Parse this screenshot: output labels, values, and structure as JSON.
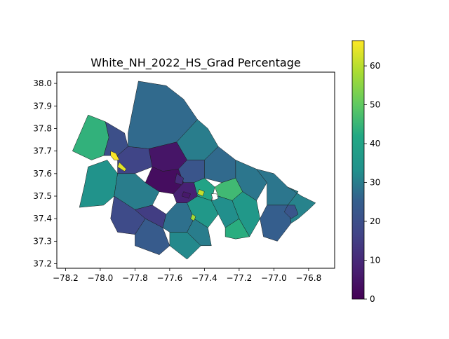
{
  "chart_data": {
    "type": "heatmap",
    "title": "White_NH_2022_HS_Grad Percentage",
    "xlabel": "",
    "ylabel": "",
    "xlim": [
      -78.25,
      -76.65
    ],
    "ylim": [
      37.18,
      38.05
    ],
    "x_ticks": [
      -78.2,
      -78.0,
      -77.8,
      -77.6,
      -77.4,
      -77.2,
      -77.0,
      -76.8
    ],
    "x_tick_labels": [
      "−78.2",
      "−78.0",
      "−77.8",
      "−77.6",
      "−77.4",
      "−77.2",
      "−77.0",
      "−76.8"
    ],
    "y_ticks": [
      37.2,
      37.3,
      37.4,
      37.5,
      37.6,
      37.7,
      37.8,
      37.9,
      38.0
    ],
    "y_tick_labels": [
      "37.2",
      "37.3",
      "37.4",
      "37.5",
      "37.6",
      "37.7",
      "37.8",
      "37.9",
      "38.0"
    ],
    "colorbar": {
      "colormap": "viridis",
      "range": [
        0,
        66.5
      ],
      "ticks": [
        0,
        10,
        20,
        30,
        40,
        50,
        60
      ],
      "tick_labels": [
        "0",
        "10",
        "20",
        "30",
        "40",
        "50",
        "60"
      ]
    },
    "grid": false,
    "regions": [
      {
        "poly": [
          [
            -78.16,
            37.7
          ],
          [
            -78.07,
            37.86
          ],
          [
            -77.97,
            37.83
          ],
          [
            -77.95,
            37.76
          ],
          [
            -77.98,
            37.68
          ],
          [
            -78.05,
            37.66
          ]
        ],
        "value": 44
      },
      {
        "poly": [
          [
            -78.07,
            37.63
          ],
          [
            -77.96,
            37.66
          ],
          [
            -77.9,
            37.6
          ],
          [
            -77.92,
            37.5
          ],
          [
            -77.98,
            37.46
          ],
          [
            -78.12,
            37.45
          ],
          [
            -78.09,
            37.55
          ]
        ],
        "value": 34
      },
      {
        "poly": [
          [
            -77.97,
            37.83
          ],
          [
            -77.86,
            37.78
          ],
          [
            -77.84,
            37.72
          ],
          [
            -77.9,
            37.68
          ],
          [
            -77.98,
            37.68
          ],
          [
            -77.95,
            37.76
          ]
        ],
        "value": 20
      },
      {
        "poly": [
          [
            -77.9,
            37.68
          ],
          [
            -77.84,
            37.72
          ],
          [
            -77.72,
            37.71
          ],
          [
            -77.7,
            37.63
          ],
          [
            -77.8,
            37.6
          ],
          [
            -77.9,
            37.6
          ]
        ],
        "value": 17
      },
      {
        "poly": [
          [
            -77.84,
            37.78
          ],
          [
            -77.78,
            38.01
          ],
          [
            -77.62,
            37.99
          ],
          [
            -77.52,
            37.93
          ],
          [
            -77.44,
            37.84
          ],
          [
            -77.56,
            37.74
          ],
          [
            -77.72,
            37.71
          ],
          [
            -77.84,
            37.72
          ]
        ],
        "value": 27
      },
      {
        "poly": [
          [
            -77.44,
            37.84
          ],
          [
            -77.38,
            37.8
          ],
          [
            -77.32,
            37.72
          ],
          [
            -77.4,
            37.66
          ],
          [
            -77.5,
            37.66
          ],
          [
            -77.56,
            37.74
          ]
        ],
        "value": 30
      },
      {
        "poly": [
          [
            -77.72,
            37.71
          ],
          [
            -77.56,
            37.74
          ],
          [
            -77.5,
            37.66
          ],
          [
            -77.55,
            37.62
          ],
          [
            -77.64,
            37.61
          ],
          [
            -77.7,
            37.63
          ]
        ],
        "value": 5
      },
      {
        "poly": [
          [
            -77.7,
            37.63
          ],
          [
            -77.64,
            37.61
          ],
          [
            -77.55,
            37.62
          ],
          [
            -77.52,
            37.56
          ],
          [
            -77.58,
            37.51
          ],
          [
            -77.66,
            37.52
          ],
          [
            -77.74,
            37.56
          ]
        ],
        "value": 3
      },
      {
        "poly": [
          [
            -77.58,
            37.51
          ],
          [
            -77.52,
            37.56
          ],
          [
            -77.46,
            37.56
          ],
          [
            -77.44,
            37.5
          ],
          [
            -77.5,
            37.47
          ],
          [
            -77.56,
            37.47
          ]
        ],
        "value": 8
      },
      {
        "poly": [
          [
            -77.55,
            37.62
          ],
          [
            -77.5,
            37.66
          ],
          [
            -77.4,
            37.66
          ],
          [
            -77.4,
            37.58
          ],
          [
            -77.46,
            37.56
          ],
          [
            -77.52,
            37.56
          ]
        ],
        "value": 22
      },
      {
        "poly": [
          [
            -77.9,
            37.6
          ],
          [
            -77.8,
            37.6
          ],
          [
            -77.74,
            37.56
          ],
          [
            -77.66,
            37.52
          ],
          [
            -77.7,
            37.46
          ],
          [
            -77.8,
            37.44
          ],
          [
            -77.92,
            37.5
          ]
        ],
        "value": 30
      },
      {
        "poly": [
          [
            -77.92,
            37.5
          ],
          [
            -77.8,
            37.44
          ],
          [
            -77.74,
            37.4
          ],
          [
            -77.8,
            37.33
          ],
          [
            -77.9,
            37.34
          ],
          [
            -77.94,
            37.4
          ]
        ],
        "value": 19
      },
      {
        "poly": [
          [
            -77.8,
            37.44
          ],
          [
            -77.7,
            37.46
          ],
          [
            -77.62,
            37.42
          ],
          [
            -77.64,
            37.36
          ],
          [
            -77.74,
            37.4
          ]
        ],
        "value": 15
      },
      {
        "poly": [
          [
            -77.74,
            37.4
          ],
          [
            -77.64,
            37.36
          ],
          [
            -77.6,
            37.28
          ],
          [
            -77.66,
            37.24
          ],
          [
            -77.8,
            37.28
          ],
          [
            -77.8,
            37.33
          ]
        ],
        "value": 24
      },
      {
        "poly": [
          [
            -77.62,
            37.42
          ],
          [
            -77.56,
            37.47
          ],
          [
            -77.5,
            37.47
          ],
          [
            -77.46,
            37.4
          ],
          [
            -77.5,
            37.34
          ],
          [
            -77.6,
            37.34
          ],
          [
            -77.64,
            37.36
          ]
        ],
        "value": 28
      },
      {
        "poly": [
          [
            -77.6,
            37.34
          ],
          [
            -77.5,
            37.34
          ],
          [
            -77.42,
            37.28
          ],
          [
            -77.5,
            37.22
          ],
          [
            -77.6,
            37.28
          ]
        ],
        "value": 32
      },
      {
        "poly": [
          [
            -77.46,
            37.56
          ],
          [
            -77.4,
            37.58
          ],
          [
            -77.34,
            37.54
          ],
          [
            -77.36,
            37.48
          ],
          [
            -77.44,
            37.5
          ]
        ],
        "value": 40
      },
      {
        "poly": [
          [
            -77.44,
            37.5
          ],
          [
            -77.36,
            37.48
          ],
          [
            -77.32,
            37.42
          ],
          [
            -77.38,
            37.36
          ],
          [
            -77.46,
            37.4
          ],
          [
            -77.5,
            37.47
          ]
        ],
        "value": 36
      },
      {
        "poly": [
          [
            -77.46,
            37.4
          ],
          [
            -77.38,
            37.36
          ],
          [
            -77.36,
            37.28
          ],
          [
            -77.42,
            37.28
          ],
          [
            -77.5,
            37.34
          ]
        ],
        "value": 30
      },
      {
        "poly": [
          [
            -77.4,
            37.66
          ],
          [
            -77.32,
            37.72
          ],
          [
            -77.22,
            37.66
          ],
          [
            -77.22,
            37.58
          ],
          [
            -77.3,
            37.56
          ],
          [
            -77.4,
            37.58
          ]
        ],
        "value": 27
      },
      {
        "poly": [
          [
            -77.34,
            37.54
          ],
          [
            -77.3,
            37.56
          ],
          [
            -77.22,
            37.58
          ],
          [
            -77.18,
            37.52
          ],
          [
            -77.24,
            37.48
          ],
          [
            -77.32,
            37.5
          ]
        ],
        "value": 46
      },
      {
        "poly": [
          [
            -77.32,
            37.5
          ],
          [
            -77.24,
            37.48
          ],
          [
            -77.2,
            37.4
          ],
          [
            -77.28,
            37.36
          ],
          [
            -77.32,
            37.42
          ],
          [
            -77.36,
            37.48
          ]
        ],
        "value": 33
      },
      {
        "poly": [
          [
            -77.28,
            37.36
          ],
          [
            -77.2,
            37.4
          ],
          [
            -77.14,
            37.32
          ],
          [
            -77.22,
            37.31
          ],
          [
            -77.28,
            37.32
          ]
        ],
        "value": 43
      },
      {
        "poly": [
          [
            -77.22,
            37.66
          ],
          [
            -77.1,
            37.62
          ],
          [
            -77.04,
            37.56
          ],
          [
            -77.1,
            37.48
          ],
          [
            -77.18,
            37.52
          ],
          [
            -77.22,
            37.58
          ]
        ],
        "value": 29
      },
      {
        "poly": [
          [
            -77.18,
            37.52
          ],
          [
            -77.1,
            37.48
          ],
          [
            -77.08,
            37.4
          ],
          [
            -77.14,
            37.32
          ],
          [
            -77.2,
            37.4
          ],
          [
            -77.24,
            37.48
          ]
        ],
        "value": 36
      },
      {
        "poly": [
          [
            -77.1,
            37.62
          ],
          [
            -77.0,
            37.6
          ],
          [
            -76.92,
            37.54
          ],
          [
            -76.86,
            37.52
          ],
          [
            -76.92,
            37.46
          ],
          [
            -77.04,
            37.46
          ],
          [
            -77.04,
            37.56
          ]
        ],
        "value": 29
      },
      {
        "poly": [
          [
            -77.04,
            37.46
          ],
          [
            -76.92,
            37.46
          ],
          [
            -76.9,
            37.38
          ],
          [
            -76.98,
            37.3
          ],
          [
            -77.06,
            37.32
          ],
          [
            -77.08,
            37.4
          ]
        ],
        "value": 25
      },
      {
        "poly": [
          [
            -76.92,
            37.54
          ],
          [
            -76.84,
            37.5
          ],
          [
            -76.76,
            37.47
          ],
          [
            -76.8,
            37.44
          ],
          [
            -76.86,
            37.4
          ],
          [
            -76.9,
            37.38
          ],
          [
            -76.92,
            37.46
          ],
          [
            -76.86,
            37.52
          ]
        ],
        "value": 31
      },
      {
        "poly": [
          [
            -76.92,
            37.46
          ],
          [
            -76.88,
            37.46
          ],
          [
            -76.86,
            37.42
          ],
          [
            -76.9,
            37.4
          ],
          [
            -76.94,
            37.43
          ]
        ],
        "value": 22
      },
      {
        "poly": [
          [
            -77.94,
            37.7
          ],
          [
            -77.91,
            37.69
          ],
          [
            -77.89,
            37.66
          ],
          [
            -77.92,
            37.66
          ],
          [
            -77.94,
            37.68
          ]
        ],
        "value": 66
      },
      {
        "poly": [
          [
            -77.89,
            37.65
          ],
          [
            -77.85,
            37.62
          ],
          [
            -77.86,
            37.61
          ],
          [
            -77.9,
            37.63
          ]
        ],
        "value": 64
      },
      {
        "poly": [
          [
            -77.43,
            37.53
          ],
          [
            -77.4,
            37.52
          ],
          [
            -77.41,
            37.5
          ],
          [
            -77.44,
            37.51
          ]
        ],
        "value": 61
      },
      {
        "poly": [
          [
            -77.47,
            37.42
          ],
          [
            -77.45,
            37.41
          ],
          [
            -77.46,
            37.39
          ],
          [
            -77.48,
            37.4
          ]
        ],
        "value": 58
      },
      {
        "poly": [
          [
            -77.52,
            37.52
          ],
          [
            -77.48,
            37.51
          ],
          [
            -77.49,
            37.49
          ],
          [
            -77.53,
            37.5
          ]
        ],
        "value": 6
      },
      {
        "poly": [
          [
            -77.56,
            37.6
          ],
          [
            -77.52,
            37.58
          ],
          [
            -77.53,
            37.55
          ],
          [
            -77.57,
            37.56
          ]
        ],
        "value": 11
      }
    ],
    "missing_regions": [
      {
        "poly": [
          [
            -77.36,
            37.51
          ],
          [
            -77.33,
            37.51
          ],
          [
            -77.32,
            37.49
          ],
          [
            -77.35,
            37.48
          ]
        ]
      }
    ]
  }
}
